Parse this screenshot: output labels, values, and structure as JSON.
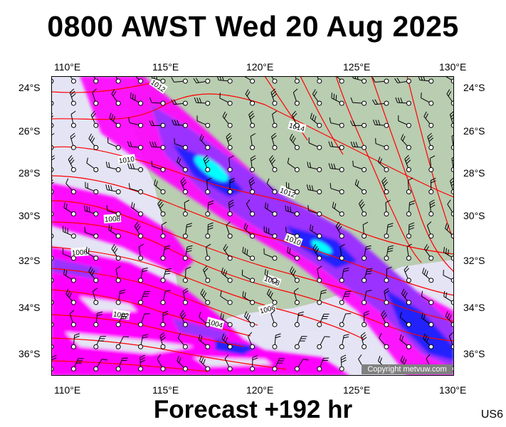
{
  "title": "0800 AWST Wed 20 Aug 2025",
  "footer": "Forecast +192 hr",
  "model_code": "US6",
  "copyright": "Copyright metvuw.com",
  "lon_labels": [
    "110°E",
    "115°E",
    "120°E",
    "125°E",
    "130°E"
  ],
  "lat_labels": [
    "24°S",
    "26°S",
    "28°S",
    "30°S",
    "32°S",
    "34°S",
    "36°S"
  ],
  "isobar_labels": [
    "1012",
    "1014",
    "1010",
    "1012",
    "1008",
    "1010",
    "1006",
    "1008",
    "1006",
    "1002",
    "1004"
  ],
  "colors": {
    "land": "#b9cdb1",
    "sea": "#e4e4f4",
    "isobar": "#ff0000",
    "precip_light": "#ff00ff",
    "precip_mid": "#9b30ff",
    "precip_heavy": "#2020ff",
    "precip_extreme": "#00ffff"
  },
  "layers": [
    "mslp-isobars",
    "precipitation",
    "wind-barbs"
  ]
}
